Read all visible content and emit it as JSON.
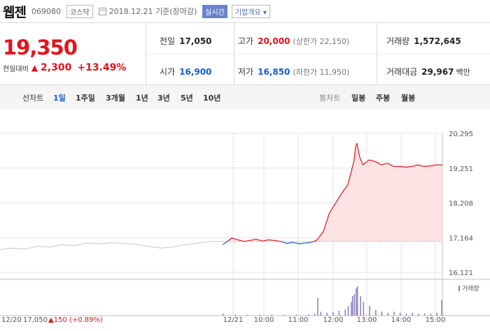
{
  "header": {
    "stock_name": "웹젠",
    "stock_code": "069080",
    "market": "코스닥",
    "date": "2018.12.21",
    "basis": "기준(장마감)",
    "realtime_label": "실시간",
    "company_overview": "기업개요 ▾"
  },
  "price": {
    "current": "19,350",
    "change_label": "전일대비",
    "change_amount": "2,300",
    "change_percent": "+13.49%"
  },
  "stats": {
    "prev_close": {
      "label": "전일",
      "value": "17,050"
    },
    "open": {
      "label": "시가",
      "value": "16,900"
    },
    "high": {
      "label": "고가",
      "value": "20,000",
      "limit": "(상한가 22,150)"
    },
    "low": {
      "label": "저가",
      "value": "16,850",
      "limit": "(하한가 11,950)"
    },
    "volume": {
      "label": "거래량",
      "value": "1,572,645"
    },
    "amount": {
      "label": "거래대금",
      "value": "29,967",
      "unit": "백만"
    }
  },
  "tabs": {
    "line_chart": "선차트",
    "periods": [
      "1일",
      "1주일",
      "3개월",
      "1년",
      "3년",
      "5년",
      "10년"
    ],
    "active_period": "1일",
    "candle_chart": "봉차트",
    "candle_periods": [
      "일봉",
      "주봉",
      "월봉"
    ]
  },
  "colors": {
    "up": "#e0141e",
    "down": "#1a5bd1",
    "prev_day_line": "#c8c8c8",
    "volume": "#8a7ab8"
  },
  "chart_data": {
    "type": "line",
    "y_ticks": [
      "20,295",
      "19,251",
      "18,208",
      "17,164",
      "16,121"
    ],
    "ylim": [
      16121,
      20295
    ],
    "x_ticks": [
      "12/21",
      "10:00",
      "11:00",
      "12:00",
      "13:00",
      "14:00",
      "15:00"
    ],
    "reference_line": 17050,
    "volume_legend": "거래량",
    "footer_prev": "12/20",
    "footer_price": "17,050",
    "footer_change": "▲150 (+0.89%)",
    "series": [
      {
        "name": "12/20",
        "x": [
          0,
          20,
          40,
          60,
          80,
          100,
          120,
          140,
          160,
          180,
          200,
          220,
          240,
          260,
          280,
          300,
          320,
          340,
          360
        ],
        "values": [
          16800,
          16850,
          16820,
          16900,
          16880,
          16950,
          16920,
          17000,
          16980,
          17010,
          16990,
          16960,
          16900,
          16850,
          16880,
          16950,
          17000,
          17050,
          17050
        ]
      },
      {
        "name": "12/21",
        "x": [
          0,
          8,
          15,
          25,
          35,
          45,
          55,
          65,
          75,
          85,
          95,
          105,
          115,
          125,
          135,
          145,
          150,
          155,
          165,
          175,
          185,
          195,
          205,
          215,
          218,
          220,
          222,
          225,
          230,
          240,
          250,
          260,
          270,
          280,
          290,
          300,
          310,
          320,
          330,
          340,
          350,
          360
        ],
        "values": [
          16950,
          17050,
          17150,
          17100,
          17050,
          17080,
          17120,
          17060,
          17100,
          17080,
          17050,
          16990,
          17020,
          16980,
          17000,
          17020,
          17050,
          17100,
          17350,
          17900,
          18200,
          18500,
          18750,
          19450,
          19900,
          20000,
          19800,
          19550,
          19350,
          19500,
          19450,
          19350,
          19400,
          19300,
          19300,
          19280,
          19300,
          19350,
          19300,
          19320,
          19350,
          19350
        ]
      }
    ],
    "volume": {
      "x": [
        0,
        20,
        40,
        60,
        80,
        100,
        120,
        140,
        150,
        155,
        160,
        170,
        180,
        190,
        200,
        205,
        210,
        212,
        215,
        218,
        220,
        225,
        230,
        240,
        250,
        260,
        270,
        280,
        290,
        300,
        310,
        320,
        330,
        340,
        350,
        358
      ],
      "values": [
        2,
        1,
        1,
        1,
        1,
        1,
        1,
        1,
        2,
        18,
        4,
        3,
        4,
        5,
        6,
        10,
        14,
        20,
        22,
        28,
        30,
        20,
        14,
        10,
        6,
        4,
        3,
        4,
        3,
        2,
        3,
        2,
        2,
        2,
        3,
        16
      ]
    }
  }
}
